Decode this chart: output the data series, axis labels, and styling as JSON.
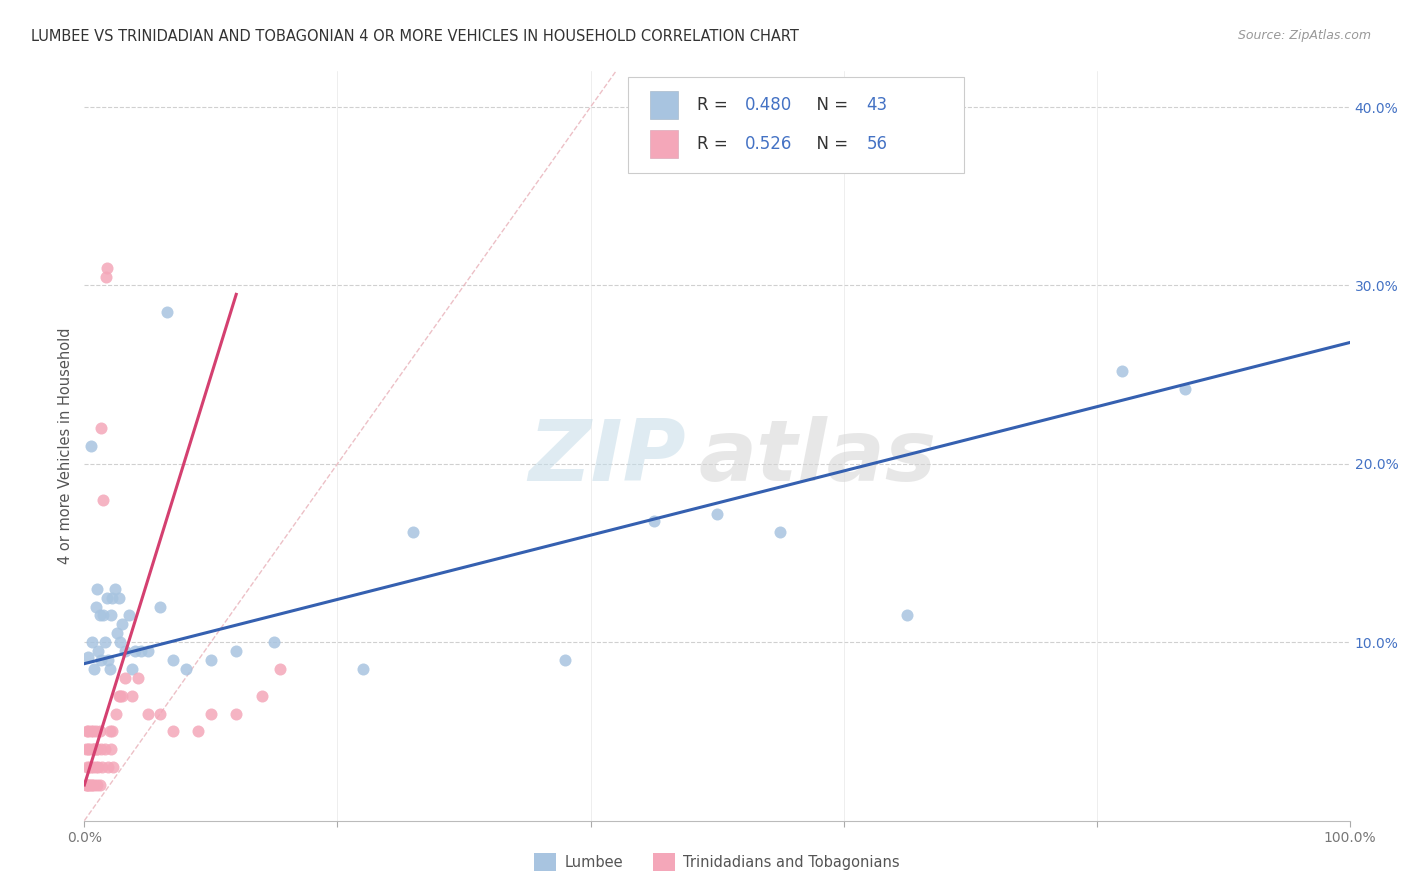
{
  "title": "LUMBEE VS TRINIDADIAN AND TOBAGONIAN 4 OR MORE VEHICLES IN HOUSEHOLD CORRELATION CHART",
  "source": "Source: ZipAtlas.com",
  "ylabel": "4 or more Vehicles in Household",
  "watermark_zip": "ZIP",
  "watermark_atlas": "atlas",
  "xlim": [
    0,
    1.0
  ],
  "ylim": [
    0,
    0.42
  ],
  "lumbee_color": "#a8c4e0",
  "trinidadian_color": "#f4a7b9",
  "lumbee_line_color": "#3560b0",
  "trinidadian_line_color": "#d44070",
  "lumbee_R": 0.48,
  "lumbee_N": 43,
  "trinidadian_R": 0.526,
  "trinidadian_N": 56,
  "grid_color": "#d0d0d0",
  "diag_color": "#e8b0b8",
  "background_color": "#ffffff",
  "title_color": "#333333",
  "source_color": "#999999",
  "ytick_color": "#4472c4",
  "xtick_color": "#777777",
  "legend_r_color": "#4472c4",
  "legend_n_color": "#4472c4",
  "legend_text_color": "#333333",
  "lumbee_x": [
    0.003,
    0.005,
    0.006,
    0.008,
    0.009,
    0.01,
    0.011,
    0.012,
    0.013,
    0.015,
    0.016,
    0.018,
    0.019,
    0.02,
    0.021,
    0.022,
    0.024,
    0.026,
    0.027,
    0.028,
    0.03,
    0.032,
    0.035,
    0.038,
    0.04,
    0.045,
    0.05,
    0.06,
    0.065,
    0.07,
    0.08,
    0.1,
    0.12,
    0.15,
    0.22,
    0.26,
    0.38,
    0.45,
    0.5,
    0.55,
    0.65,
    0.82,
    0.87
  ],
  "lumbee_y": [
    0.092,
    0.21,
    0.1,
    0.085,
    0.12,
    0.13,
    0.095,
    0.115,
    0.09,
    0.115,
    0.1,
    0.125,
    0.09,
    0.085,
    0.115,
    0.125,
    0.13,
    0.105,
    0.125,
    0.1,
    0.11,
    0.095,
    0.115,
    0.085,
    0.095,
    0.095,
    0.095,
    0.12,
    0.285,
    0.09,
    0.085,
    0.09,
    0.095,
    0.1,
    0.085,
    0.162,
    0.09,
    0.168,
    0.172,
    0.162,
    0.115,
    0.252,
    0.242
  ],
  "trinidadian_x": [
    0.001,
    0.001,
    0.002,
    0.002,
    0.002,
    0.003,
    0.003,
    0.003,
    0.004,
    0.004,
    0.004,
    0.005,
    0.005,
    0.005,
    0.006,
    0.006,
    0.007,
    0.007,
    0.008,
    0.008,
    0.008,
    0.009,
    0.009,
    0.01,
    0.01,
    0.01,
    0.011,
    0.012,
    0.012,
    0.013,
    0.013,
    0.014,
    0.015,
    0.016,
    0.017,
    0.018,
    0.019,
    0.02,
    0.021,
    0.022,
    0.023,
    0.025,
    0.027,
    0.028,
    0.03,
    0.032,
    0.038,
    0.042,
    0.05,
    0.06,
    0.07,
    0.09,
    0.1,
    0.12,
    0.14,
    0.155
  ],
  "trinidadian_y": [
    0.02,
    0.04,
    0.03,
    0.05,
    0.02,
    0.04,
    0.02,
    0.05,
    0.03,
    0.04,
    0.02,
    0.03,
    0.05,
    0.02,
    0.04,
    0.02,
    0.03,
    0.05,
    0.04,
    0.02,
    0.04,
    0.03,
    0.05,
    0.04,
    0.02,
    0.04,
    0.03,
    0.05,
    0.02,
    0.04,
    0.22,
    0.03,
    0.18,
    0.04,
    0.305,
    0.31,
    0.03,
    0.05,
    0.04,
    0.05,
    0.03,
    0.06,
    0.07,
    0.07,
    0.07,
    0.08,
    0.07,
    0.08,
    0.06,
    0.06,
    0.05,
    0.05,
    0.06,
    0.06,
    0.07,
    0.085
  ],
  "blue_line_x": [
    0.0,
    1.0
  ],
  "blue_line_y": [
    0.088,
    0.268
  ],
  "pink_line_x": [
    0.0,
    0.12
  ],
  "pink_line_y": [
    0.02,
    0.295
  ]
}
